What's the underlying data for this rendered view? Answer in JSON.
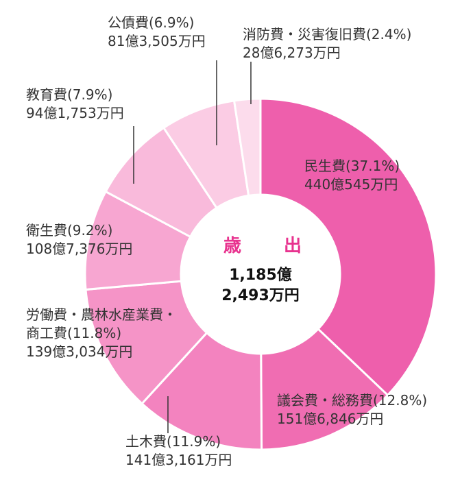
{
  "chart_data": {
    "type": "pie",
    "center": {
      "title": "歳　出",
      "total_line1": "1,185億",
      "total_line2": "2,493万円"
    },
    "slices": [
      {
        "label": "民生費",
        "percent": 37.1,
        "pct_text": "(37.1%)",
        "amount": "440億545万円",
        "color": "#ee5fac"
      },
      {
        "label": "議会費・総務費",
        "percent": 12.8,
        "pct_text": "(12.8%)",
        "amount": "151億6,846万円",
        "color": "#f06db2"
      },
      {
        "label": "土木費",
        "percent": 11.9,
        "pct_text": "(11.9%)",
        "amount": "141億3,161万円",
        "color": "#f383bf"
      },
      {
        "label": "労働費・農林水産業費・商工費",
        "percent": 11.8,
        "pct_text": "(11.8%)",
        "amount": "139億3,034万円",
        "color": "#f594c7"
      },
      {
        "label": "衛生費",
        "percent": 9.2,
        "pct_text": "(9.2%)",
        "amount": "108億7,376万円",
        "color": "#f7a6d1"
      },
      {
        "label": "教育費",
        "percent": 7.9,
        "pct_text": "(7.9%)",
        "amount": "94億1,753万円",
        "color": "#f9badb"
      },
      {
        "label": "公債費",
        "percent": 6.9,
        "pct_text": "(6.9%)",
        "amount": "81億3,505万円",
        "color": "#fbcce4"
      },
      {
        "label": "消防費・災害復旧費",
        "percent": 2.4,
        "pct_text": "(2.4%)",
        "amount": "28億6,273万円",
        "color": "#fcdcec"
      }
    ]
  }
}
